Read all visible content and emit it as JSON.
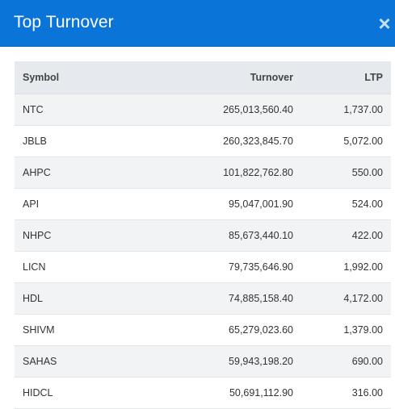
{
  "dialog": {
    "title": "Top Turnover",
    "close_icon": "×"
  },
  "table": {
    "headers": {
      "symbol": "Symbol",
      "turnover": "Turnover",
      "ltp": "LTP"
    },
    "rows": [
      {
        "symbol": "NTC",
        "turnover": "265,013,560.40",
        "ltp": "1,737.00"
      },
      {
        "symbol": "JBLB",
        "turnover": "260,323,845.70",
        "ltp": "5,072.00"
      },
      {
        "symbol": "AHPC",
        "turnover": "101,822,762.80",
        "ltp": "550.00"
      },
      {
        "symbol": "API",
        "turnover": "95,047,001.90",
        "ltp": "524.00"
      },
      {
        "symbol": "NHPC",
        "turnover": "85,673,440.10",
        "ltp": "422.00"
      },
      {
        "symbol": "LICN",
        "turnover": "79,735,646.90",
        "ltp": "1,992.00"
      },
      {
        "symbol": "HDL",
        "turnover": "74,885,158.40",
        "ltp": "4,172.00"
      },
      {
        "symbol": "SHIVM",
        "turnover": "65,279,023.60",
        "ltp": "1,379.00"
      },
      {
        "symbol": "SAHAS",
        "turnover": "59,943,198.20",
        "ltp": "690.00"
      },
      {
        "symbol": "HIDCL",
        "turnover": "50,691,112.90",
        "ltp": "316.00"
      }
    ]
  }
}
